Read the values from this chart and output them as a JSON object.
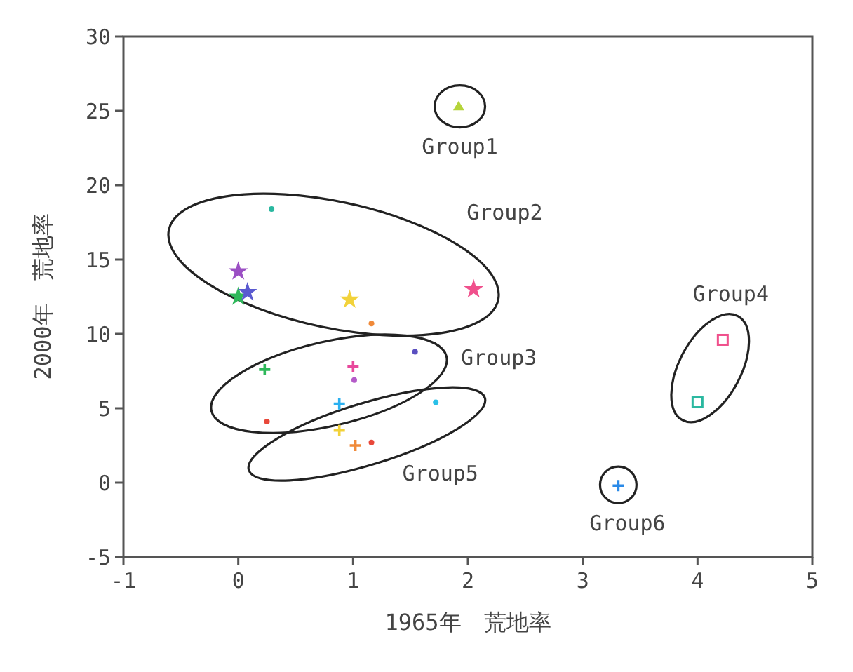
{
  "chart_data": {
    "type": "scatter",
    "xlabel": "1965年　荒地率",
    "ylabel": "2000年　荒地率",
    "xlim": [
      -1,
      5
    ],
    "xticks": [
      -1,
      0,
      1,
      2,
      3,
      4,
      5
    ],
    "ylim": [
      -5,
      30
    ],
    "yticks": [
      -5,
      0,
      5,
      10,
      15,
      20,
      25,
      30
    ],
    "grid": false,
    "series": [
      {
        "marker": "triangle",
        "x": [
          1.92
        ],
        "values": [
          25.3
        ],
        "colors": [
          "#b5d43a"
        ]
      },
      {
        "marker": "star",
        "x": [
          0,
          0,
          0.08,
          0.97,
          2.05
        ],
        "values": [
          14.2,
          12.5,
          12.8,
          12.3,
          13.0
        ],
        "colors": [
          "#9b4fc4",
          "#2fb85a",
          "#5a5ad0",
          "#f2d23a",
          "#f0508c"
        ]
      },
      {
        "marker": "circle",
        "x": [
          0.29,
          1.16,
          1.54,
          1.01,
          1.72,
          0.25,
          1.16
        ],
        "values": [
          18.4,
          10.7,
          8.8,
          6.9,
          5.4,
          4.1,
          2.7
        ],
        "colors": [
          "#2ab8a0",
          "#f08a3a",
          "#5a4fc0",
          "#b45ac8",
          "#2ac0e8",
          "#e8483a",
          "#e8483a"
        ]
      },
      {
        "marker": "cross",
        "x": [
          0.23,
          1.0,
          0.88,
          0.88,
          1.02,
          3.31
        ],
        "values": [
          7.6,
          7.8,
          5.3,
          3.5,
          2.5,
          -0.2
        ],
        "colors": [
          "#2fb85a",
          "#e8489c",
          "#2ab0f0",
          "#f2d23a",
          "#f08a3a",
          "#2a8ae8"
        ]
      },
      {
        "marker": "square",
        "x": [
          4.22,
          4.0
        ],
        "values": [
          9.6,
          5.4
        ],
        "colors": [
          "#f0508c",
          "#2ab8a0"
        ]
      }
    ],
    "annotations": [
      "Group1",
      "Group2",
      "Group3",
      "Group4",
      "Group5",
      "Group6"
    ]
  }
}
